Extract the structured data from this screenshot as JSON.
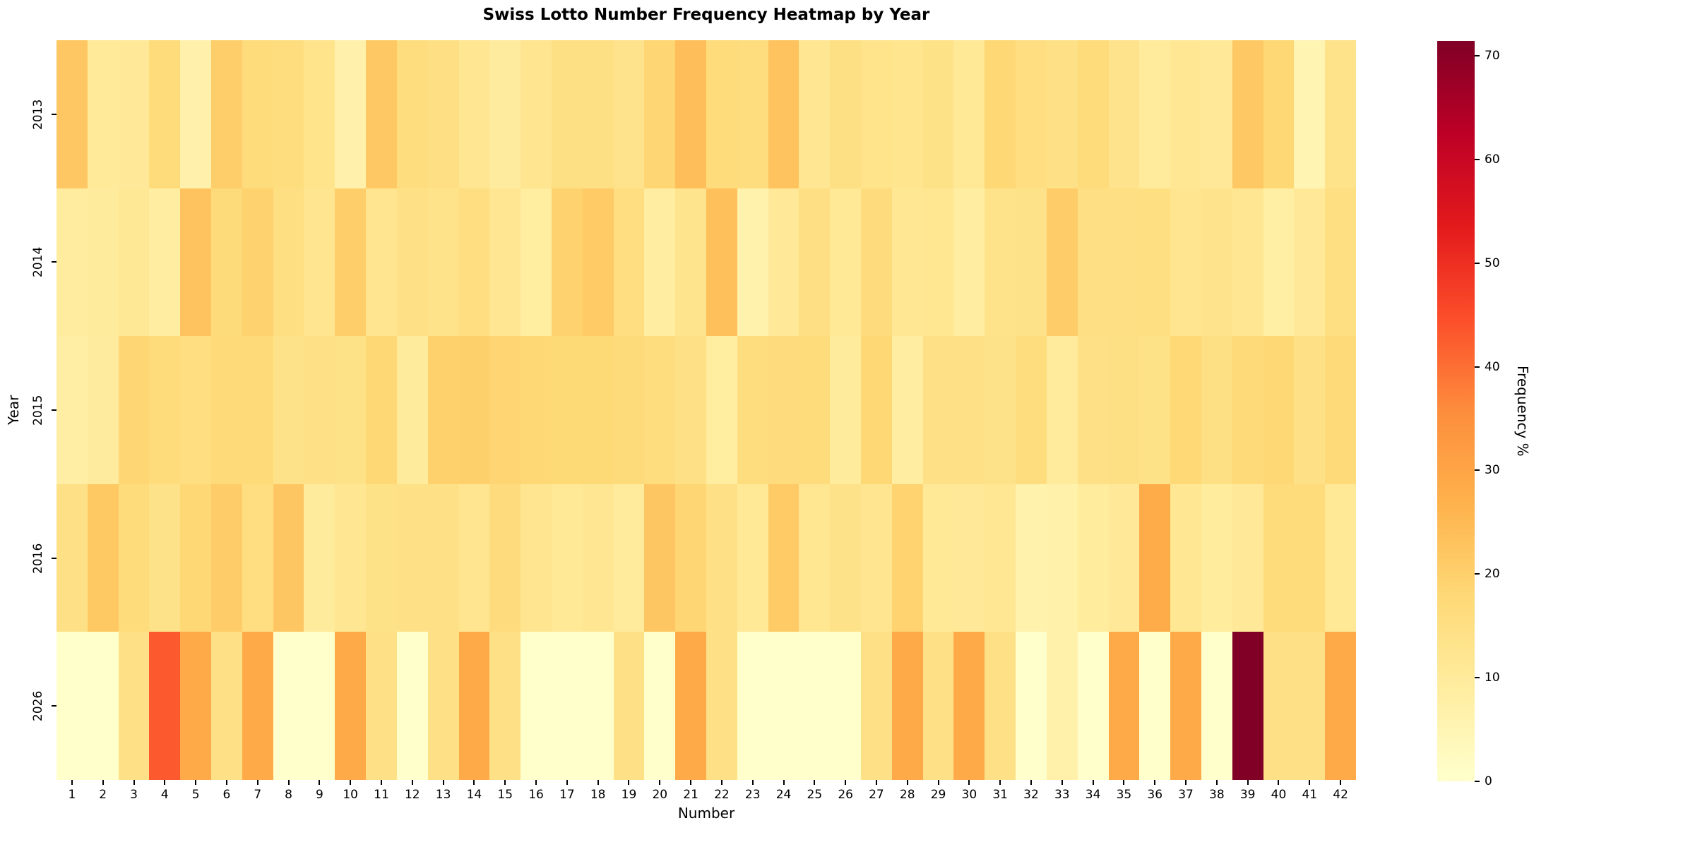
{
  "chart_data": {
    "type": "heatmap",
    "title": "Swiss Lotto Number Frequency Heatmap by Year",
    "xlabel": "Number",
    "ylabel": "Year",
    "legend_label": "Frequency %",
    "colormap": "YlOrRd",
    "vmin": 0,
    "vmax": 71.43,
    "colorbar_ticks": [
      0,
      10,
      20,
      30,
      40,
      50,
      60,
      70
    ],
    "x_categories": [
      "1",
      "2",
      "3",
      "4",
      "5",
      "6",
      "7",
      "8",
      "9",
      "10",
      "11",
      "12",
      "13",
      "14",
      "15",
      "16",
      "17",
      "18",
      "19",
      "20",
      "21",
      "22",
      "23",
      "24",
      "25",
      "26",
      "27",
      "28",
      "29",
      "30",
      "31",
      "32",
      "33",
      "34",
      "35",
      "36",
      "37",
      "38",
      "39",
      "40",
      "41",
      "42"
    ],
    "y_categories": [
      "2013",
      "2014",
      "2015",
      "2016",
      "2026"
    ],
    "series": [
      {
        "name": "2013",
        "values": [
          21.9,
          10.1,
          10.6,
          16.5,
          6.7,
          20.4,
          16.8,
          16.0,
          13.1,
          6.7,
          21.5,
          16.2,
          15.2,
          12.0,
          9.6,
          12.3,
          14.8,
          14.8,
          13.2,
          18.5,
          24.0,
          16.8,
          16.0,
          23.0,
          12.0,
          14.8,
          13.1,
          12.7,
          14.0,
          11.0,
          18.0,
          15.6,
          14.4,
          16.8,
          13.2,
          10.0,
          11.5,
          10.5,
          21.5,
          18.2,
          5.3,
          13.4
        ]
      },
      {
        "name": "2014",
        "values": [
          9.3,
          9.7,
          11.3,
          8.6,
          22.8,
          17.0,
          19.5,
          15.3,
          12.4,
          20.4,
          12.6,
          14.5,
          13.3,
          15.5,
          11.9,
          8.9,
          19.5,
          21.0,
          15.8,
          8.8,
          12.8,
          23.5,
          6.5,
          10.5,
          15.0,
          11.0,
          16.3,
          11.7,
          12.2,
          8.5,
          13.5,
          13.9,
          20.6,
          15.0,
          15.0,
          15.3,
          12.4,
          13.2,
          12.0,
          8.0,
          10.5,
          15.3
        ]
      },
      {
        "name": "2015",
        "values": [
          8.3,
          9.6,
          18.6,
          16.8,
          15.8,
          17.5,
          17.5,
          13.8,
          14.3,
          14.0,
          18.0,
          9.7,
          19.8,
          20.0,
          18.7,
          18.1,
          17.6,
          17.6,
          17.0,
          15.9,
          14.2,
          9.0,
          16.1,
          16.4,
          16.6,
          9.7,
          18.0,
          8.6,
          14.2,
          14.5,
          13.8,
          16.1,
          9.9,
          14.5,
          14.8,
          14.0,
          17.8,
          14.8,
          17.2,
          18.0,
          14.3,
          17.5
        ]
      },
      {
        "name": "2016",
        "values": [
          14.2,
          21.8,
          16.7,
          13.8,
          18.2,
          20.7,
          15.8,
          22.2,
          9.7,
          11.9,
          14.0,
          14.2,
          14.5,
          12.3,
          16.3,
          12.5,
          11.0,
          12.0,
          10.0,
          22.2,
          18.5,
          14.2,
          11.0,
          21.0,
          12.2,
          13.8,
          12.3,
          19.2,
          11.0,
          10.7,
          11.6,
          6.3,
          6.8,
          9.5,
          10.5,
          28.5,
          11.6,
          9.5,
          10.5,
          16.9,
          16.8,
          11.0
        ]
      },
      {
        "name": "2026",
        "values": [
          0,
          0,
          14.3,
          42.9,
          28.6,
          14.3,
          28.6,
          0,
          0,
          28.6,
          14.3,
          0,
          14.3,
          28.6,
          14.3,
          0,
          0,
          0,
          14.3,
          0,
          28.6,
          14.3,
          0,
          0,
          0,
          0,
          14.3,
          28.6,
          14.3,
          28.6,
          14.3,
          0,
          7.1,
          0,
          28.6,
          0,
          28.6,
          0,
          71.4,
          14.3,
          14.3,
          28.6
        ]
      }
    ]
  }
}
